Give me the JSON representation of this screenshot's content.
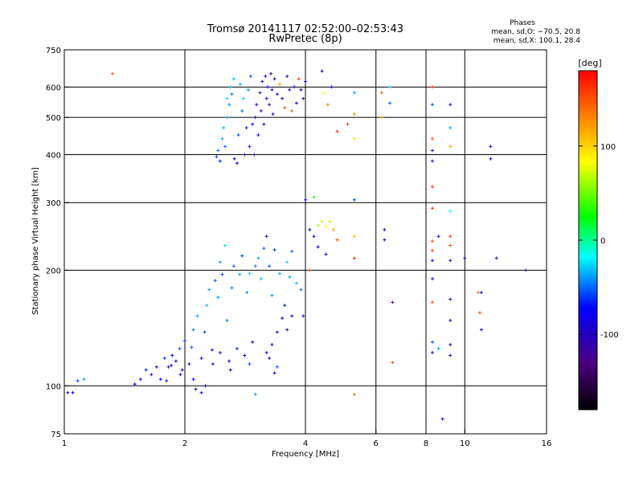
{
  "header": {
    "title": "Tromsø 20141117 02:52:00–02:53:43",
    "subtitle": "RwPretec (8p)",
    "stats_title": "Phases",
    "stats_o": "mean, sd,O: −70.5, 20.8",
    "stats_x": "mean, sd,X: 100.1, 28.4"
  },
  "chart_data": {
    "type": "scatter",
    "xlabel": "Frequency [MHz]",
    "ylabel": "Stationary phase Virtual Height [km]",
    "x_scale": "log",
    "y_scale": "log",
    "xlim": [
      1,
      16
    ],
    "ylim": [
      75,
      750
    ],
    "x_ticks": [
      1,
      2,
      4,
      6,
      8,
      10,
      16
    ],
    "y_ticks": [
      75,
      100,
      200,
      300,
      400,
      500,
      600,
      750
    ],
    "grid_x": [
      2,
      4,
      6,
      8,
      10
    ],
    "grid_y": [
      100,
      200,
      300,
      400,
      500,
      600
    ],
    "colorbar": {
      "label": "[deg]",
      "range": [
        -180,
        180
      ],
      "ticks": [
        100,
        0,
        -100
      ],
      "colormap": [
        "#000000",
        "#4b0082",
        "#0000ff",
        "#00ffff",
        "#00ff00",
        "#ffff00",
        "#ff0000"
      ]
    },
    "series": [
      {
        "name": "",
        "marker": "+",
        "points": [
          [
            1.02,
            96,
            -90
          ],
          [
            1.05,
            96,
            -80
          ],
          [
            1.08,
            103,
            -60
          ],
          [
            1.12,
            104,
            -40
          ],
          [
            1.32,
            650,
            150
          ],
          [
            1.5,
            101,
            -80
          ],
          [
            1.55,
            104,
            -90
          ],
          [
            1.6,
            110,
            -70
          ],
          [
            1.65,
            107,
            -95
          ],
          [
            1.7,
            112,
            -75
          ],
          [
            1.74,
            104,
            -85
          ],
          [
            1.78,
            118,
            -70
          ],
          [
            1.82,
            112,
            -100
          ],
          [
            1.86,
            120,
            -80
          ],
          [
            1.9,
            116,
            -95
          ],
          [
            1.94,
            125,
            -60
          ],
          [
            1.97,
            110,
            -90
          ],
          [
            2.0,
            131,
            -70
          ],
          [
            2.05,
            114,
            -100
          ],
          [
            2.08,
            126,
            -55
          ],
          [
            2.1,
            140,
            -50
          ],
          [
            2.13,
            98,
            -90
          ],
          [
            2.15,
            152,
            -40
          ],
          [
            2.2,
            118,
            -80
          ],
          [
            2.24,
            138,
            -60
          ],
          [
            2.27,
            162,
            -35
          ],
          [
            2.3,
            178,
            -40
          ],
          [
            2.34,
            124,
            -90
          ],
          [
            2.38,
            188,
            -55
          ],
          [
            2.42,
            170,
            -45
          ],
          [
            2.45,
            210,
            -40
          ],
          [
            2.48,
            195,
            -60
          ],
          [
            2.52,
            232,
            -30
          ],
          [
            2.55,
            148,
            -50
          ],
          [
            2.58,
            116,
            -95
          ],
          [
            2.62,
            180,
            -45
          ],
          [
            2.65,
            205,
            -55
          ],
          [
            2.7,
            125,
            -70
          ],
          [
            2.74,
            195,
            -40
          ],
          [
            2.78,
            218,
            -60
          ],
          [
            2.82,
            120,
            -90
          ],
          [
            2.86,
            175,
            -45
          ],
          [
            2.9,
            196,
            -30
          ],
          [
            2.95,
            130,
            -80
          ],
          [
            3.0,
            205,
            -50
          ],
          [
            3.05,
            215,
            -40
          ],
          [
            3.1,
            190,
            -35
          ],
          [
            3.15,
            228,
            -55
          ],
          [
            3.2,
            245,
            -100
          ],
          [
            3.25,
            205,
            -60
          ],
          [
            3.3,
            172,
            -45
          ],
          [
            3.35,
            226,
            -65
          ],
          [
            3.4,
            138,
            -100
          ],
          [
            3.45,
            196,
            -40
          ],
          [
            3.5,
            150,
            -100
          ],
          [
            3.55,
            162,
            -70
          ],
          [
            3.6,
            210,
            -30
          ],
          [
            3.65,
            192,
            -40
          ],
          [
            3.7,
            224,
            -55
          ],
          [
            3.8,
            185,
            -35
          ],
          [
            3.9,
            178,
            -50
          ],
          [
            3.95,
            152,
            -100
          ],
          [
            3.2,
            122,
            -110
          ],
          [
            3.25,
            118,
            -100
          ],
          [
            3.3,
            128,
            -95
          ],
          [
            3.35,
            108,
            -80
          ],
          [
            3.4,
            112,
            -60
          ],
          [
            3.6,
            140,
            -110
          ],
          [
            3.7,
            152,
            -100
          ],
          [
            3.0,
            95,
            -40
          ],
          [
            2.9,
            114,
            -60
          ],
          [
            2.6,
            110,
            -90
          ],
          [
            2.45,
            122,
            -90
          ],
          [
            2.35,
            114,
            -100
          ],
          [
            2.25,
            100,
            -80
          ],
          [
            2.2,
            96,
            -90
          ],
          [
            2.1,
            104,
            -80
          ],
          [
            1.95,
            107,
            -85
          ],
          [
            1.85,
            113,
            -95
          ],
          [
            1.8,
            103,
            -70
          ],
          [
            2.4,
            395,
            -60
          ],
          [
            2.42,
            410,
            -50
          ],
          [
            2.45,
            385,
            -70
          ],
          [
            2.48,
            440,
            -40
          ],
          [
            2.5,
            470,
            -35
          ],
          [
            2.52,
            420,
            -55
          ],
          [
            2.55,
            500,
            -40
          ],
          [
            2.55,
            560,
            -30
          ],
          [
            2.58,
            540,
            -45
          ],
          [
            2.6,
            600,
            -40
          ],
          [
            2.62,
            575,
            -50
          ],
          [
            2.65,
            630,
            -35
          ],
          [
            2.66,
            390,
            -90
          ],
          [
            2.7,
            380,
            -80
          ],
          [
            2.72,
            450,
            -60
          ],
          [
            2.75,
            610,
            -40
          ],
          [
            2.78,
            520,
            -55
          ],
          [
            2.8,
            560,
            -30
          ],
          [
            2.82,
            400,
            -100
          ],
          [
            2.85,
            470,
            -70
          ],
          [
            2.88,
            590,
            -45
          ],
          [
            2.9,
            420,
            -100
          ],
          [
            2.92,
            640,
            -60
          ],
          [
            2.95,
            480,
            -90
          ],
          [
            2.98,
            400,
            -110
          ],
          [
            3.0,
            500,
            -100
          ],
          [
            3.02,
            540,
            -110
          ],
          [
            3.05,
            450,
            -90
          ],
          [
            3.08,
            580,
            -110
          ],
          [
            3.1,
            520,
            -120
          ],
          [
            3.12,
            620,
            -110
          ],
          [
            3.15,
            480,
            -100
          ],
          [
            3.18,
            640,
            -120
          ],
          [
            3.2,
            560,
            -100
          ],
          [
            3.22,
            600,
            -90
          ],
          [
            3.25,
            540,
            -115
          ],
          [
            3.28,
            650,
            -120
          ],
          [
            3.3,
            590,
            -100
          ],
          [
            3.32,
            510,
            -110
          ],
          [
            3.35,
            630,
            -110
          ],
          [
            3.4,
            575,
            -100
          ],
          [
            3.45,
            610,
            120
          ],
          [
            3.5,
            560,
            -90
          ],
          [
            3.55,
            530,
            150
          ],
          [
            3.6,
            640,
            -100
          ],
          [
            3.65,
            590,
            -80
          ],
          [
            3.7,
            520,
            140
          ],
          [
            3.75,
            600,
            -100
          ],
          [
            3.8,
            545,
            -90
          ],
          [
            3.85,
            630,
            160
          ],
          [
            3.9,
            590,
            -100
          ],
          [
            3.95,
            560,
            -110
          ],
          [
            4.0,
            620,
            -80
          ],
          [
            4.1,
            255,
            -80
          ],
          [
            4.2,
            245,
            -100
          ],
          [
            4.3,
            262,
            60
          ],
          [
            4.4,
            268,
            70
          ],
          [
            4.5,
            260,
            80
          ],
          [
            4.6,
            268,
            60
          ],
          [
            4.7,
            255,
            120
          ],
          [
            4.8,
            240,
            150
          ],
          [
            4.5,
            220,
            -100
          ],
          [
            4.3,
            230,
            -80
          ],
          [
            4.1,
            200,
            150
          ],
          [
            4.0,
            305,
            -90
          ],
          [
            4.2,
            310,
            30
          ],
          [
            4.4,
            660,
            -100
          ],
          [
            4.45,
            580,
            80
          ],
          [
            4.55,
            540,
            130
          ],
          [
            4.65,
            600,
            -100
          ],
          [
            4.8,
            460,
            160
          ],
          [
            5.1,
            480,
            160
          ],
          [
            5.3,
            580,
            -40
          ],
          [
            5.3,
            440,
            90
          ],
          [
            5.3,
            510,
            130
          ],
          [
            5.3,
            305,
            -60
          ],
          [
            5.3,
            245,
            110
          ],
          [
            5.3,
            215,
            160
          ],
          [
            5.3,
            95,
            140
          ],
          [
            6.2,
            580,
            150
          ],
          [
            6.2,
            500,
            120
          ],
          [
            6.3,
            255,
            -110
          ],
          [
            6.3,
            240,
            -80
          ],
          [
            6.5,
            545,
            -60
          ],
          [
            6.5,
            600,
            -30
          ],
          [
            6.6,
            165,
            -130
          ],
          [
            6.6,
            115,
            150
          ],
          [
            8.3,
            600,
            160
          ],
          [
            8.3,
            540,
            -60
          ],
          [
            8.3,
            440,
            150
          ],
          [
            8.3,
            410,
            -100
          ],
          [
            8.3,
            385,
            -110
          ],
          [
            8.3,
            330,
            160
          ],
          [
            8.3,
            290,
            160
          ],
          [
            8.3,
            238,
            150
          ],
          [
            8.3,
            225,
            160
          ],
          [
            8.3,
            212,
            -90
          ],
          [
            8.3,
            190,
            -100
          ],
          [
            8.3,
            165,
            150
          ],
          [
            8.3,
            130,
            -60
          ],
          [
            8.3,
            122,
            -110
          ],
          [
            8.6,
            125,
            -40
          ],
          [
            8.6,
            245,
            -100
          ],
          [
            8.8,
            82,
            -110
          ],
          [
            9.2,
            540,
            -100
          ],
          [
            9.2,
            470,
            -40
          ],
          [
            9.2,
            420,
            120
          ],
          [
            9.2,
            285,
            -20
          ],
          [
            9.2,
            245,
            160
          ],
          [
            9.2,
            232,
            150
          ],
          [
            9.2,
            212,
            -100
          ],
          [
            9.2,
            168,
            -100
          ],
          [
            9.2,
            148,
            -100
          ],
          [
            9.2,
            128,
            -110
          ],
          [
            9.2,
            120,
            -110
          ],
          [
            10.0,
            215,
            -110
          ],
          [
            10.8,
            175,
            140
          ],
          [
            10.9,
            155,
            150
          ],
          [
            11.0,
            140,
            -110
          ],
          [
            11.0,
            175,
            -100
          ],
          [
            11.6,
            420,
            -110
          ],
          [
            11.6,
            390,
            -100
          ],
          [
            12.0,
            215,
            -100
          ],
          [
            14.2,
            200,
            -120
          ]
        ]
      }
    ]
  }
}
